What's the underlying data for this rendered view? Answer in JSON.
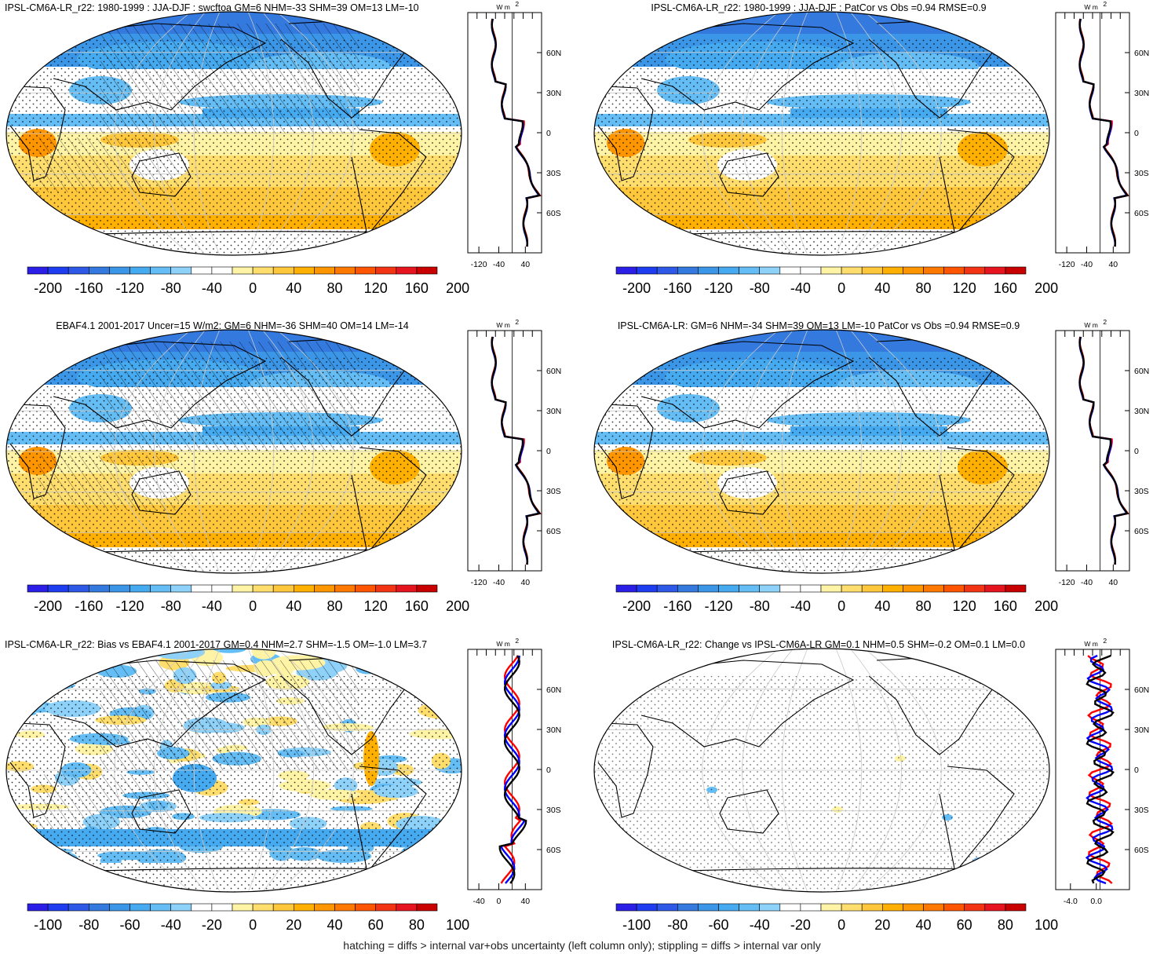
{
  "footer_note": "hatching = diffs > internal var+obs uncertainty (left column only); stippling = diffs > internal var only",
  "palette": [
    "#2b1ee6",
    "#1e3cf0",
    "#2e58e6",
    "#3479de",
    "#3c96e8",
    "#46aaf0",
    "#64bef5",
    "#8ed2fa",
    "#ffffff",
    "#ffffff",
    "#fff3a6",
    "#ffde6e",
    "#ffc83c",
    "#ffb000",
    "#ff9600",
    "#ff7800",
    "#ff5500",
    "#f23314",
    "#e6141e",
    "#c80000"
  ],
  "blue_line_color": "#0000ff",
  "red_line_color": "#ff0000",
  "black_line_color": "#000000",
  "panels": [
    {
      "title": "IPSL-CM6A-LR_r22: 1980-1999 : JJA-DJF : swcftoa GM=6 NHM=-33 SHM=39 OM=13 LM=-10",
      "colorbar_labels": [
        "-200",
        "-160",
        "-120",
        "-80",
        "-40",
        "0",
        "40",
        "80",
        "120",
        "160",
        "200"
      ],
      "profile_ticks_x": [
        "-120",
        "-40",
        "40"
      ],
      "profile_ticks_y": [
        "60N",
        "30N",
        "0",
        "30S",
        "60S"
      ],
      "profile_unit": "W m",
      "hatched": true
    },
    {
      "title": "IPSL-CM6A-LR_r22: 1980-1999 : JJA-DJF : PatCor vs Obs =0.94 RMSE=0.9",
      "colorbar_labels": [
        "-200",
        "-160",
        "-120",
        "-80",
        "-40",
        "0",
        "40",
        "80",
        "120",
        "160",
        "200"
      ],
      "profile_ticks_x": [
        "-120",
        "-40",
        "40"
      ],
      "profile_ticks_y": [
        "60N",
        "30N",
        "0",
        "30S",
        "60S"
      ],
      "profile_unit": "W m",
      "hatched": false
    },
    {
      "title": "EBAF4.1 2001-2017 Uncer=15 W/m2: GM=6 NHM=-36 SHM=40 OM=14 LM=-14",
      "colorbar_labels": [
        "-200",
        "-160",
        "-120",
        "-80",
        "-40",
        "0",
        "40",
        "80",
        "120",
        "160",
        "200"
      ],
      "profile_ticks_x": [
        "-120",
        "-40",
        "40"
      ],
      "profile_ticks_y": [
        "60N",
        "30N",
        "0",
        "30S",
        "60S"
      ],
      "profile_unit": "W m",
      "hatched": true
    },
    {
      "title": "IPSL-CM6A-LR: GM=6 NHM=-34 SHM=39 OM=13 LM=-10 PatCor vs Obs =0.94 RMSE=0.9",
      "colorbar_labels": [
        "-200",
        "-160",
        "-120",
        "-80",
        "-40",
        "0",
        "40",
        "80",
        "120",
        "160",
        "200"
      ],
      "profile_ticks_x": [
        "-120",
        "-40",
        "40"
      ],
      "profile_ticks_y": [
        "60N",
        "30N",
        "0",
        "30S",
        "60S"
      ],
      "profile_unit": "W m",
      "hatched": false
    },
    {
      "title": "IPSL-CM6A-LR_r22: Bias vs EBAF4.1 2001-2017 GM=0.4 NHM=2.7 SHM=-1.5 OM=-1.0 LM=3.7",
      "colorbar_labels": [
        "-100",
        "-80",
        "-60",
        "-40",
        "-20",
        "0",
        "20",
        "40",
        "60",
        "80",
        "100"
      ],
      "profile_ticks_x": [
        "-40",
        "0",
        "40"
      ],
      "profile_ticks_y": [
        "60N",
        "30N",
        "0",
        "30S",
        "60S"
      ],
      "profile_unit": "W m",
      "hatched": true
    },
    {
      "title": "IPSL-CM6A-LR_r22: Change vs IPSL-CM6A-LR GM=0.1 NHM=0.5 SHM=-0.2 OM=0.1 LM=0.0",
      "colorbar_labels": [
        "-100",
        "-80",
        "-60",
        "-40",
        "-20",
        "0",
        "20",
        "40",
        "60",
        "80",
        "100"
      ],
      "profile_ticks_x": [
        "-4.0",
        "0.0"
      ],
      "profile_ticks_y": [
        "60N",
        "30N",
        "0",
        "30S",
        "60S"
      ],
      "profile_unit": "W m",
      "hatched": false
    }
  ]
}
